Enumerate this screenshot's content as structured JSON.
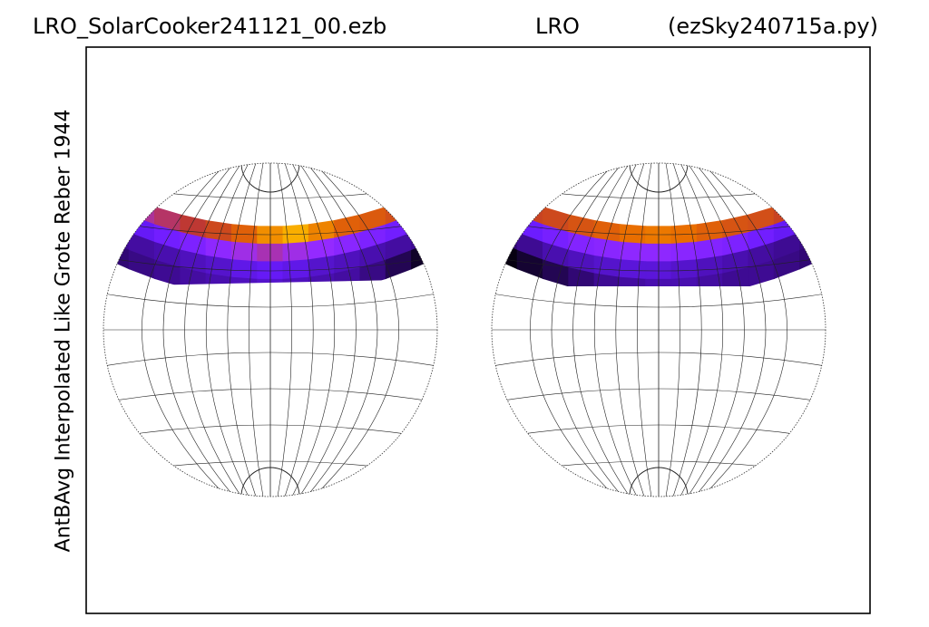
{
  "header": {
    "left": "LRO_SolarCooker241121_00.ezb",
    "center": "LRO",
    "right": "(ezSky240715a.py)"
  },
  "chart_data": {
    "type": "heatmap",
    "ylabel": "AntBAvg Interpolated Like Grote Reber 1944",
    "projection": "two hemispheres (stereographic-style sky map)",
    "colormap": [
      "#000000",
      "#3a0a8a",
      "#6a1bff",
      "#9a2cff",
      "#c0392b",
      "#e86a00",
      "#ffc400"
    ],
    "hemispheres": [
      {
        "name": "left",
        "coverage_band": "upper crescent",
        "intensity_rows": [
          [
            0.55,
            0.58,
            0.62,
            0.66,
            0.72,
            0.8,
            0.9,
            0.96,
            0.88,
            0.8,
            0.78,
            0.74,
            0.7
          ],
          [
            0.3,
            0.32,
            0.36,
            0.4,
            0.46,
            0.52,
            0.56,
            0.52,
            0.48,
            0.44,
            0.4,
            0.36,
            0.32
          ],
          [
            0.18,
            0.2,
            0.22,
            0.24,
            0.26,
            0.3,
            0.32,
            0.3,
            0.26,
            0.24,
            0.22,
            0.2,
            0.18
          ],
          [
            0.14,
            0.16,
            0.18,
            0.2,
            0.22,
            0.24,
            0.26,
            0.24,
            0.22,
            0.2,
            0.16,
            0.1,
            0.05
          ]
        ]
      },
      {
        "name": "right",
        "coverage_band": "upper crescent",
        "intensity_rows": [
          [
            0.66,
            0.7,
            0.72,
            0.76,
            0.8,
            0.84,
            0.86,
            0.84,
            0.8,
            0.76,
            0.74,
            0.7,
            0.68
          ],
          [
            0.3,
            0.34,
            0.38,
            0.42,
            0.44,
            0.46,
            0.46,
            0.44,
            0.42,
            0.4,
            0.36,
            0.32,
            0.3
          ],
          [
            0.14,
            0.18,
            0.22,
            0.24,
            0.26,
            0.28,
            0.28,
            0.26,
            0.24,
            0.22,
            0.2,
            0.18,
            0.16
          ],
          [
            0.02,
            0.06,
            0.1,
            0.14,
            0.18,
            0.2,
            0.22,
            0.22,
            0.2,
            0.18,
            0.18,
            0.16,
            0.14
          ]
        ]
      }
    ]
  }
}
